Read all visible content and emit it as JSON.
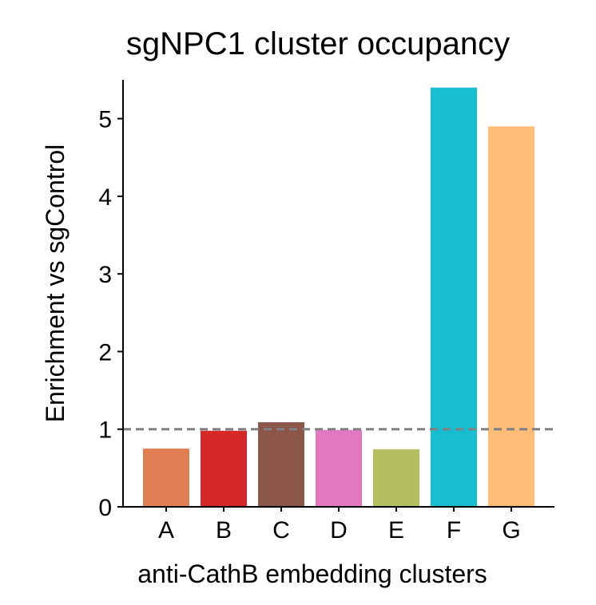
{
  "chart_data": {
    "type": "bar",
    "title": "sgNPC1 cluster occupancy",
    "xlabel": "anti-CathB embedding clusters",
    "ylabel": "Enrichment vs sgControl",
    "categories": [
      "A",
      "B",
      "C",
      "D",
      "E",
      "F",
      "G"
    ],
    "values": [
      0.75,
      0.98,
      1.09,
      0.99,
      0.74,
      5.4,
      4.9
    ],
    "colors": [
      "#E07F53",
      "#D62728",
      "#8C564B",
      "#E377C2",
      "#B5BD61",
      "#17BECF",
      "#FFBB78"
    ],
    "ylim": [
      0,
      5.5
    ],
    "yticks": [
      0,
      1,
      2,
      3,
      4,
      5
    ],
    "reference_line": {
      "y": 1,
      "style": "dashed",
      "color": "#808080"
    },
    "grid": false,
    "legend": "none"
  }
}
